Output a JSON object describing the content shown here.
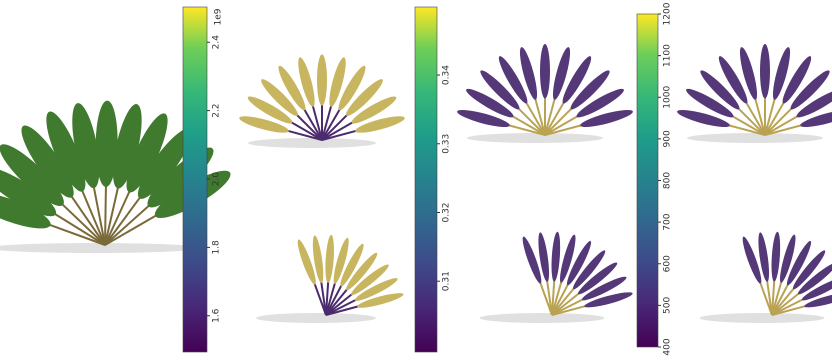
{
  "colorbars": [
    {
      "ylim": [
        1.494,
        2.503
      ],
      "yticks": [
        1.6,
        1.8,
        {
          "value": 2.0,
          "label": "2.0"
        },
        2.2,
        2.4
      ],
      "offset": "1e9"
    },
    {
      "ylim": [
        0.2997,
        0.3499
      ],
      "yticks": [
        0.31,
        0.32,
        0.33,
        0.34
      ]
    },
    {
      "ylim": [
        400,
        1200
      ],
      "yticks": [
        400,
        500,
        600,
        700,
        800,
        900,
        1000,
        1100,
        1200
      ]
    }
  ]
}
